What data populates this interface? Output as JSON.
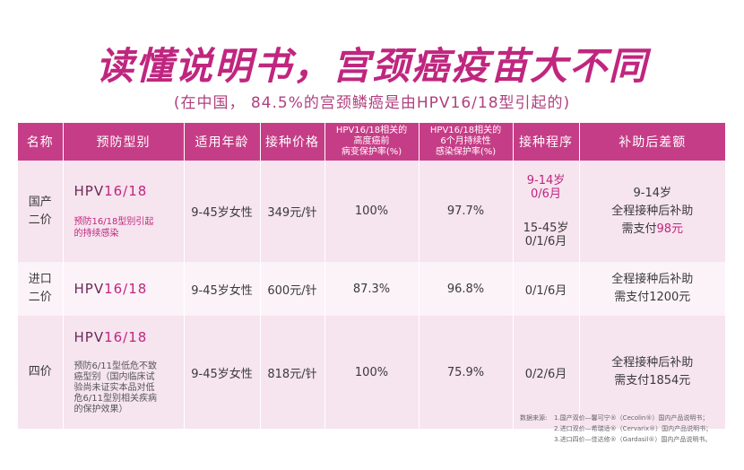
{
  "title": "读懂说明书，宫颈癌疫苗大不同",
  "subtitle": "(在中国， 84.5%的宫颈鳞癌是由HPV16/18型引起的)",
  "headers": [
    "名称",
    "预防型别",
    "适用年龄",
    "接种价格",
    "HPV16/18相关的\n高度癌前\n病变保护率(%)",
    "HPV16/18相关的\n6个月持续性\n感染保护率(%)",
    "接种程序",
    "补助后差额"
  ],
  "rows": [
    {
      "name": "国产\n二价",
      "hpv_prefix": "HPV",
      "hpv_types": "16/18",
      "type_note": "预防16/18型别引起\n的持续感染",
      "age": "9-45岁女性",
      "price": "349元/针",
      "precancer": "100%",
      "infection": "97.7%",
      "schedule_a": "9-14岁\n0/6月",
      "schedule_b": "15-45岁\n0/1/6月",
      "subsidy_text": "9-14岁\n全程接种后补助\n需支付",
      "subsidy_amount": "98元"
    },
    {
      "name": "进口\n二价",
      "hpv_prefix": "HPV",
      "hpv_types": "16/18",
      "age": "9-45岁女性",
      "price": "600元/针",
      "precancer": "87.3%",
      "infection": "96.8%",
      "schedule": "0/1/6月",
      "subsidy_text": "全程接种后补助\n需支付1200元"
    },
    {
      "name": "四价",
      "hpv_prefix": "HPV",
      "hpv_types": "16/18",
      "type_note": "预防6/11型低危不致\n癌型别（国内临床试\n验尚未证实本品对低\n危6/11型别相关疾病\n的保护效果）",
      "age": "9-45岁女性",
      "price": "818元/针",
      "precancer": "100%",
      "infection": "75.9%",
      "schedule": "0/2/6月",
      "subsidy_text": "全程接种后补助\n需支付1854元"
    }
  ],
  "source": {
    "label": "数据来源:",
    "lines": [
      "1.国产双价—馨可宁®（Cecolin®）国内产品说明书；",
      "2.进口双价—希瑞适®（Cervarix®）国内产品说明书；",
      "3.进口四价—佳达修®（Gardasil®）国内产品说明书。"
    ]
  },
  "colors": {
    "accent": "#c0267f",
    "header_bg": "#c63d87",
    "row_light": "#fcf3f8",
    "row_dark": "#f6e4ee"
  }
}
